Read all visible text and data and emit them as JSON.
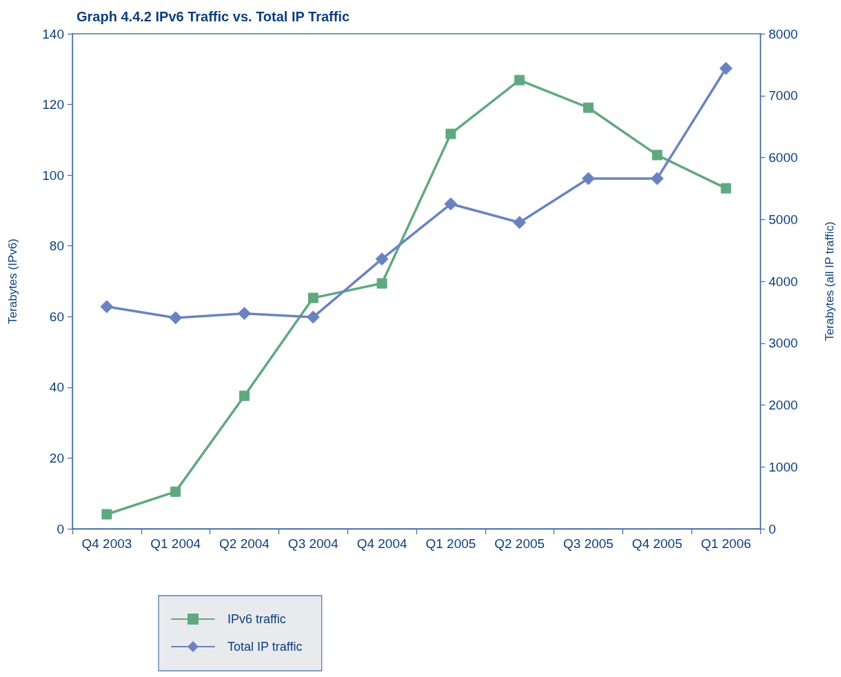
{
  "chart_data": {
    "type": "line",
    "title": "Graph 4.4.2 IPv6 Traffic vs. Total IP Traffic",
    "ylabel": "Terabytes (IPv6)",
    "y2label": "Terabytes (all IP traffic)",
    "categories": [
      "Q4 2003",
      "Q1 2004",
      "Q2 2004",
      "Q3 2004",
      "Q4 2004",
      "Q1 2005",
      "Q2 2005",
      "Q3 2005",
      "Q4 2005",
      "Q1 2006"
    ],
    "series": [
      {
        "name": "IPv6 traffic",
        "color": "#5fa97f",
        "marker": "square",
        "values": [
          4.1,
          10.5,
          37.6,
          65.3,
          69.4,
          111.7,
          126.9,
          119.1,
          105.7,
          96.3
        ]
      },
      {
        "name": "Total IP traffic",
        "color": "#6a83c0",
        "marker": "diamond",
        "axis": "y2",
        "values": [
          3590,
          3410,
          3480,
          3420,
          4360,
          5250,
          4950,
          5660,
          5660,
          7440
        ]
      }
    ],
    "ylim": [
      0,
      140
    ],
    "yticks": [
      0,
      20,
      40,
      60,
      80,
      100,
      120,
      140
    ],
    "y2lim": [
      0,
      8000
    ],
    "y2ticks": [
      0,
      1000,
      2000,
      3000,
      4000,
      5000,
      6000,
      7000,
      8000
    ],
    "grid": false,
    "legend": "bottom",
    "line_style": "solid"
  }
}
